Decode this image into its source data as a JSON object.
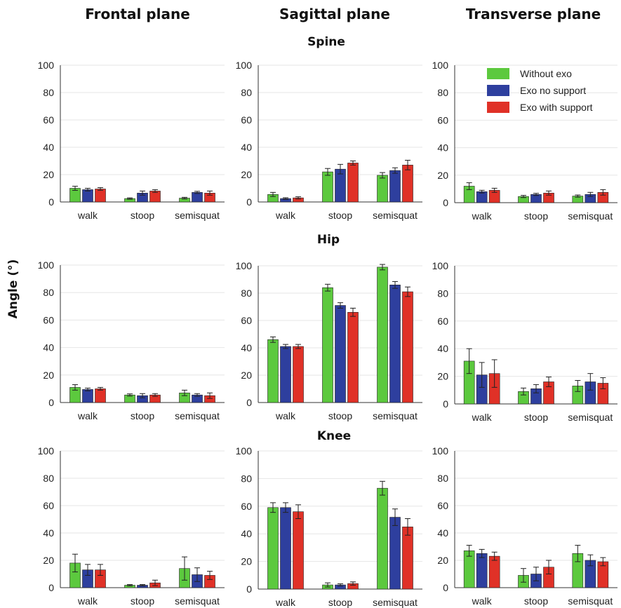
{
  "column_titles": [
    "Frontal plane",
    "Sagittal plane",
    "Transverse plane"
  ],
  "row_titles": [
    "Spine",
    "Hip",
    "Knee"
  ],
  "y_axis_label": "Angle (°)",
  "legend": {
    "placement": "top-right of Spine / Transverse panel",
    "entries": [
      "Without exo",
      "Exo no support",
      "Exo with support"
    ]
  },
  "colors": {
    "Without exo": "#5cc93e",
    "Exo no support": "#2e3f9e",
    "Exo with support": "#e03127"
  },
  "chart_data": [
    {
      "type": "bar",
      "row": "Spine",
      "column": "Frontal plane",
      "categories": [
        "walk",
        "stoop",
        "semisquat"
      ],
      "ylim": [
        0,
        100
      ],
      "yticks": [
        0,
        20,
        40,
        60,
        80,
        100
      ],
      "grid": true,
      "series": [
        {
          "name": "Without exo",
          "values": [
            10,
            2.5,
            2.8
          ],
          "errors": [
            1.5,
            0.5,
            0.6
          ]
        },
        {
          "name": "Exo no support",
          "values": [
            9,
            6.5,
            7
          ],
          "errors": [
            1,
            1.5,
            0.8
          ]
        },
        {
          "name": "Exo with support",
          "values": [
            9.5,
            8,
            6.5
          ],
          "errors": [
            1,
            1,
            1.5
          ]
        }
      ]
    },
    {
      "type": "bar",
      "row": "Spine",
      "column": "Sagittal plane",
      "categories": [
        "walk",
        "stoop",
        "semisquat"
      ],
      "ylim": [
        0,
        100
      ],
      "yticks": [
        0,
        20,
        40,
        60,
        80,
        100
      ],
      "grid": true,
      "series": [
        {
          "name": "Without exo",
          "values": [
            5.5,
            22,
            19.5
          ],
          "errors": [
            1.5,
            2.5,
            2
          ]
        },
        {
          "name": "Exo no support",
          "values": [
            2.5,
            24,
            23
          ],
          "errors": [
            0.6,
            3.5,
            2
          ]
        },
        {
          "name": "Exo with support",
          "values": [
            3,
            28.5,
            27
          ],
          "errors": [
            0.8,
            1.5,
            3.5
          ]
        }
      ]
    },
    {
      "type": "bar",
      "row": "Spine",
      "column": "Transverse plane",
      "categories": [
        "walk",
        "stoop",
        "semisquat"
      ],
      "ylim": [
        0,
        100
      ],
      "yticks": [
        0,
        20,
        40,
        60,
        80,
        100
      ],
      "grid": true,
      "series": [
        {
          "name": "Without exo",
          "values": [
            12,
            4.5,
            4.8
          ],
          "errors": [
            2.5,
            0.8,
            0.8
          ]
        },
        {
          "name": "Exo no support",
          "values": [
            8,
            6,
            6
          ],
          "errors": [
            1,
            0.8,
            1.5
          ]
        },
        {
          "name": "Exo with support",
          "values": [
            9,
            7,
            7.5
          ],
          "errors": [
            1.5,
            1.5,
            2
          ]
        }
      ]
    },
    {
      "type": "bar",
      "row": "Hip",
      "column": "Frontal plane",
      "categories": [
        "walk",
        "stoop",
        "semisquat"
      ],
      "ylim": [
        0,
        100
      ],
      "yticks": [
        0,
        20,
        40,
        60,
        80,
        100
      ],
      "grid": true,
      "series": [
        {
          "name": "Without exo",
          "values": [
            11,
            5.5,
            7
          ],
          "errors": [
            2,
            0.8,
            2
          ]
        },
        {
          "name": "Exo no support",
          "values": [
            9.5,
            5,
            5.5
          ],
          "errors": [
            1,
            1.5,
            1
          ]
        },
        {
          "name": "Exo with support",
          "values": [
            10,
            5.5,
            5
          ],
          "errors": [
            1,
            1,
            2
          ]
        }
      ]
    },
    {
      "type": "bar",
      "row": "Hip",
      "column": "Sagittal plane",
      "categories": [
        "walk",
        "stoop",
        "semisquat"
      ],
      "ylim": [
        0,
        100
      ],
      "yticks": [
        0,
        20,
        40,
        60,
        80,
        100
      ],
      "grid": true,
      "series": [
        {
          "name": "Without exo",
          "values": [
            46,
            84,
            99
          ],
          "errors": [
            2,
            2.5,
            2
          ]
        },
        {
          "name": "Exo no support",
          "values": [
            41,
            71,
            86
          ],
          "errors": [
            1.5,
            2,
            2.5
          ]
        },
        {
          "name": "Exo with support",
          "values": [
            41,
            66,
            81
          ],
          "errors": [
            1.5,
            3,
            3.5
          ]
        }
      ]
    },
    {
      "type": "bar",
      "row": "Hip",
      "column": "Transverse plane",
      "categories": [
        "walk",
        "stoop",
        "semisquat"
      ],
      "ylim": [
        0,
        100
      ],
      "yticks": [
        0,
        20,
        40,
        60,
        80,
        100
      ],
      "grid": true,
      "series": [
        {
          "name": "Without exo",
          "values": [
            31,
            9,
            13
          ],
          "errors": [
            9,
            2.5,
            4
          ]
        },
        {
          "name": "Exo no support",
          "values": [
            21,
            11,
            16
          ],
          "errors": [
            9,
            3,
            6
          ]
        },
        {
          "name": "Exo with support",
          "values": [
            22,
            16,
            15
          ],
          "errors": [
            10,
            3.5,
            4
          ]
        }
      ]
    },
    {
      "type": "bar",
      "row": "Knee",
      "column": "Frontal plane",
      "categories": [
        "walk",
        "stoop",
        "semisquat"
      ],
      "ylim": [
        0,
        100
      ],
      "yticks": [
        0,
        20,
        40,
        60,
        80,
        100
      ],
      "grid": true,
      "series": [
        {
          "name": "Without exo",
          "values": [
            18,
            1.8,
            14
          ],
          "errors": [
            6.5,
            0.5,
            8.5
          ]
        },
        {
          "name": "Exo no support",
          "values": [
            13,
            1.8,
            9.5
          ],
          "errors": [
            4,
            0.5,
            5
          ]
        },
        {
          "name": "Exo with support",
          "values": [
            13,
            3.5,
            9
          ],
          "errors": [
            4,
            2,
            3
          ]
        }
      ]
    },
    {
      "type": "bar",
      "row": "Knee",
      "column": "Sagittal plane",
      "categories": [
        "walk",
        "stoop",
        "semisquat"
      ],
      "ylim": [
        0,
        100
      ],
      "yticks": [
        0,
        20,
        40,
        60,
        80,
        100
      ],
      "grid": true,
      "series": [
        {
          "name": "Without exo",
          "values": [
            59,
            3,
            73
          ],
          "errors": [
            3.5,
            1.5,
            5
          ]
        },
        {
          "name": "Exo no support",
          "values": [
            59,
            3,
            52
          ],
          "errors": [
            3.5,
            0.8,
            6
          ]
        },
        {
          "name": "Exo with support",
          "values": [
            56,
            4,
            45
          ],
          "errors": [
            5,
            1.2,
            6
          ]
        }
      ]
    },
    {
      "type": "bar",
      "row": "Knee",
      "column": "Transverse plane",
      "categories": [
        "walk",
        "stoop",
        "semisquat"
      ],
      "ylim": [
        0,
        100
      ],
      "yticks": [
        0,
        20,
        40,
        60,
        80,
        100
      ],
      "grid": true,
      "series": [
        {
          "name": "Without exo",
          "values": [
            27,
            9,
            25
          ],
          "errors": [
            4,
            5,
            6
          ]
        },
        {
          "name": "Exo no support",
          "values": [
            25,
            10,
            20
          ],
          "errors": [
            3,
            5,
            4
          ]
        },
        {
          "name": "Exo with support",
          "values": [
            23,
            15,
            19
          ],
          "errors": [
            3,
            5,
            3
          ]
        }
      ]
    }
  ]
}
